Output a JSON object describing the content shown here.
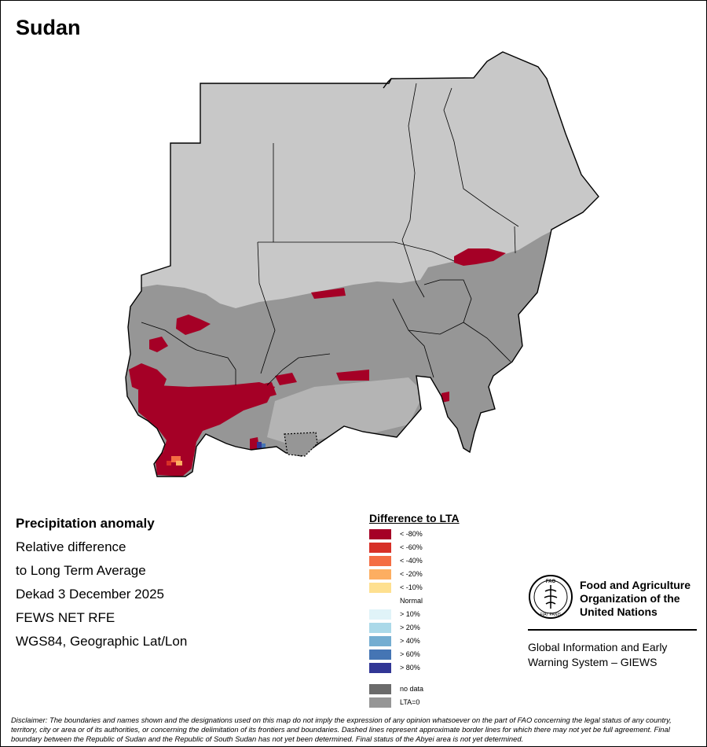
{
  "map_title": "Sudan",
  "info": {
    "heading": "Precipitation anomaly",
    "line1": "Relative difference",
    "line2": "to Long Term Average",
    "period": "Dekad 3 December 2025",
    "source": "FEWS NET RFE",
    "projection": "WGS84, Geographic Lat/Lon"
  },
  "legend": {
    "title": "Difference to LTA",
    "items": [
      {
        "label": "< -80%",
        "color": "#a50026"
      },
      {
        "label": "< -60%",
        "color": "#d73027"
      },
      {
        "label": "< -40%",
        "color": "#f46d43"
      },
      {
        "label": "< -20%",
        "color": "#fdae61"
      },
      {
        "label": "< -10%",
        "color": "#fee090"
      },
      {
        "label": "Normal",
        "color": "#ffffff"
      },
      {
        "label": "> 10%",
        "color": "#e0f3f8"
      },
      {
        "label": "> 20%",
        "color": "#abd9e9"
      },
      {
        "label": "> 40%",
        "color": "#74add1"
      },
      {
        "label": "> 60%",
        "color": "#4575b4"
      },
      {
        "label": "> 80%",
        "color": "#313695"
      }
    ],
    "extra": [
      {
        "label": "no data",
        "color": "#6b6b6b"
      },
      {
        "label": "LTA=0",
        "color": "#969696"
      }
    ]
  },
  "map_colors": {
    "dry_season": "#c8c8c8",
    "lta_zero": "#969696",
    "severe_deficit": "#a50026",
    "border": "#000000"
  },
  "fao": {
    "logo_text_top": "FAO",
    "logo_text_bottom": "FIAT PANIS",
    "name_line1": "Food and Agriculture",
    "name_line2": "Organization of the",
    "name_line3": "United Nations",
    "giews_line1": "Global Information and Early",
    "giews_line2": "Warning System – GIEWS"
  },
  "disclaimer": "Disclaimer: The boundaries and names shown and the designations used on this map do not imply the expression of any opinion whatsoever on the part of FAO concerning the legal status of any country, territory, city or area or of its authorities, or concerning the delimitation of its frontiers and boundaries. Dashed lines represent approximate border lines for which there may not yet be full agreement.  Final boundary between the Republic of Sudan and the Republic of South Sudan has not yet been determined. Final status of the Abyei area is not yet determined."
}
